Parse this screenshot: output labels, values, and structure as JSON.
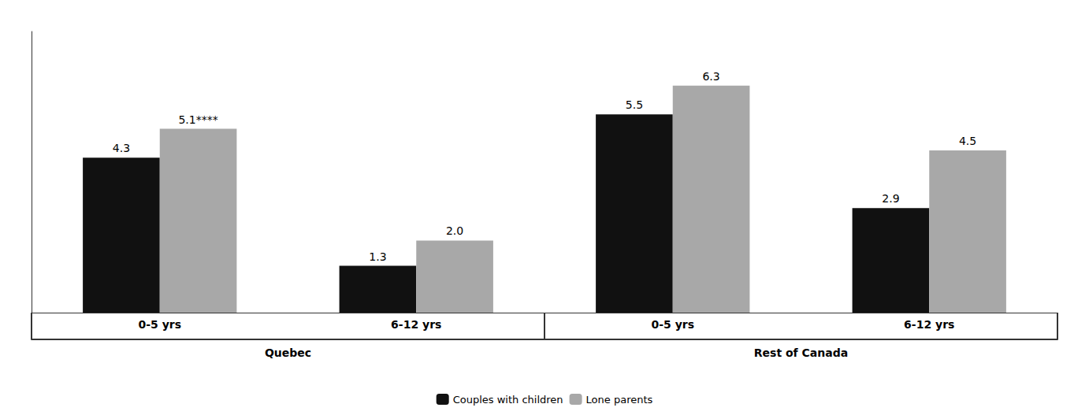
{
  "chart_data": {
    "type": "bar",
    "categories": [
      "0-5 yrs",
      "6-12 yrs",
      "0-5 yrs",
      "6-12 yrs"
    ],
    "regions": [
      "Quebec",
      "Quebec",
      "Rest of Canada",
      "Rest of Canada"
    ],
    "series": [
      {
        "name": "Couples with children",
        "color": "#111111",
        "values": [
          4.3,
          1.3,
          5.5,
          2.9
        ]
      },
      {
        "name": "Lone parents",
        "color": "#a8a8a8",
        "values": [
          5.1,
          2.0,
          6.3,
          4.5
        ],
        "value_labels": [
          "5.1****",
          "2.0",
          "6.3",
          "4.5"
        ]
      }
    ],
    "ylim": [
      0,
      7.8
    ],
    "data_labels": true,
    "tick_labels": "x",
    "grid": false,
    "legend": "bottom"
  }
}
